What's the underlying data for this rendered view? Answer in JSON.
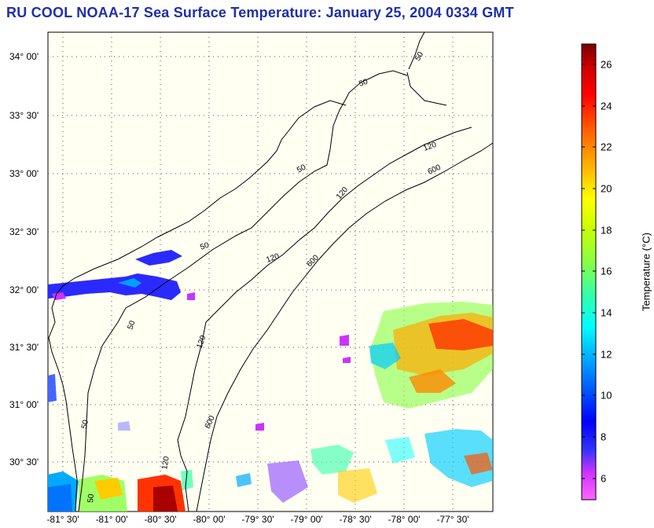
{
  "title": "RU COOL  NOAA-17  Sea Surface Temperature:  January 25, 2004 0334 GMT",
  "y_axis_labels": [
    "34° 00'",
    "33° 30'",
    "33° 00'",
    "32° 30'",
    "32° 00'",
    "31° 30'",
    "31° 00'",
    "30° 30'"
  ],
  "x_axis_labels": [
    "-81° 30'",
    "-81° 00'",
    "-80° 30'",
    "-80° 00'",
    "-79° 30'",
    "-79° 00'",
    "-78° 30'",
    "-78° 00'",
    "-77° 30'"
  ],
  "isobath_labels": [
    "50",
    "50",
    "50",
    "50",
    "50",
    "50",
    "50",
    "120",
    "120",
    "120",
    "120",
    "120",
    "600",
    "600",
    "600"
  ],
  "colorbar": {
    "title": "Temperature (°C)",
    "min": 5,
    "max": 27,
    "ticks": [
      "6",
      "8",
      "10",
      "12",
      "14",
      "16",
      "18",
      "20",
      "22",
      "24",
      "26"
    ]
  },
  "colors": {
    "title": "#1f2fa8",
    "land": "#fffff2",
    "contour": "#000000"
  }
}
